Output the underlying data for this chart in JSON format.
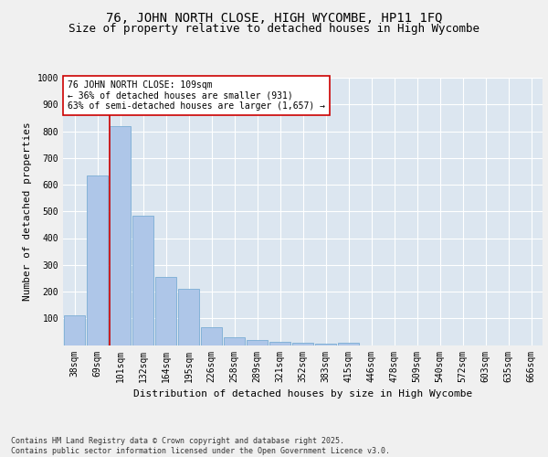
{
  "title": "76, JOHN NORTH CLOSE, HIGH WYCOMBE, HP11 1FQ",
  "subtitle": "Size of property relative to detached houses in High Wycombe",
  "xlabel": "Distribution of detached houses by size in High Wycombe",
  "ylabel": "Number of detached properties",
  "categories": [
    "38sqm",
    "69sqm",
    "101sqm",
    "132sqm",
    "164sqm",
    "195sqm",
    "226sqm",
    "258sqm",
    "289sqm",
    "321sqm",
    "352sqm",
    "383sqm",
    "415sqm",
    "446sqm",
    "478sqm",
    "509sqm",
    "540sqm",
    "572sqm",
    "603sqm",
    "635sqm",
    "666sqm"
  ],
  "values": [
    110,
    635,
    820,
    485,
    255,
    210,
    65,
    28,
    20,
    13,
    10,
    5,
    8,
    0,
    0,
    0,
    0,
    0,
    0,
    0,
    0
  ],
  "bar_color": "#aec6e8",
  "bar_edge_color": "#7aadd4",
  "vline_color": "#cc0000",
  "annotation_text": "76 JOHN NORTH CLOSE: 109sqm\n← 36% of detached houses are smaller (931)\n63% of semi-detached houses are larger (1,657) →",
  "annotation_box_color": "#ffffff",
  "annotation_box_edge": "#cc0000",
  "ylim": [
    0,
    1000
  ],
  "yticks": [
    0,
    100,
    200,
    300,
    400,
    500,
    600,
    700,
    800,
    900,
    1000
  ],
  "plot_bg_color": "#dce6f0",
  "grid_color": "#ffffff",
  "fig_bg_color": "#f0f0f0",
  "footer": "Contains HM Land Registry data © Crown copyright and database right 2025.\nContains public sector information licensed under the Open Government Licence v3.0.",
  "title_fontsize": 10,
  "subtitle_fontsize": 9,
  "axis_label_fontsize": 8,
  "tick_fontsize": 7,
  "annotation_fontsize": 7,
  "footer_fontsize": 6
}
